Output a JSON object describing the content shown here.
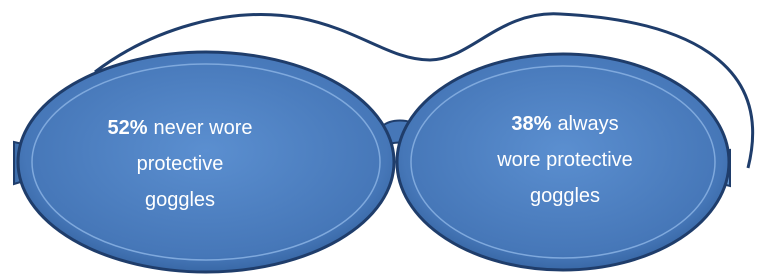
{
  "lenses": [
    {
      "percent": "52%",
      "lines": [
        "never wore",
        "protective",
        "goggles"
      ]
    },
    {
      "percent": "38%",
      "lines": [
        "always",
        "wore protective",
        "goggles"
      ]
    }
  ]
}
